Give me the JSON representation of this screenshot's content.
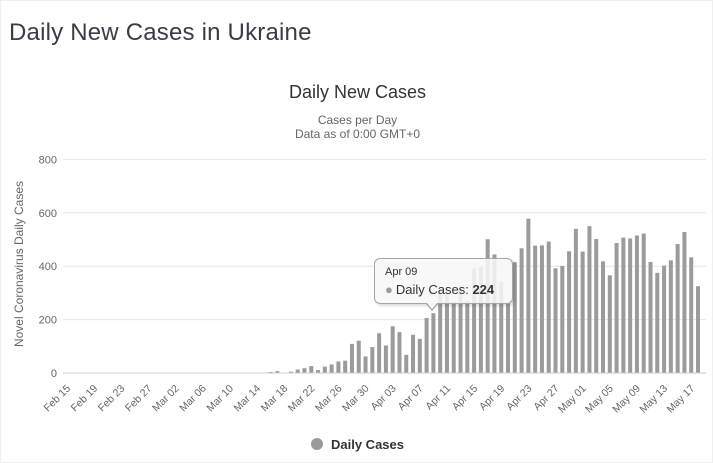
{
  "page": {
    "title": "Daily New Cases in Ukraine"
  },
  "chart": {
    "title": "Daily New Cases",
    "subtitle_line1": "Cases per Day",
    "subtitle_line2": "Data as of 0:00 GMT+0",
    "y_axis_title": "Novel Coronavirus Daily Cases",
    "legend_label": "Daily Cases"
  },
  "tooltip": {
    "date": "Apr 09",
    "series_label": "Daily Cases:",
    "value": "224",
    "bullet": "●",
    "anchor_index": 54
  },
  "colors": {
    "bar": "#9b9b9b",
    "grid": "#e6e6e6",
    "axis_line": "#cccccc",
    "tick_text": "#666666",
    "title_text": "#333333"
  },
  "chart_data": {
    "type": "bar",
    "title": "Daily New Cases",
    "subtitle": [
      "Cases per Day",
      "Data as of 0:00 GMT+0"
    ],
    "xlabel": "",
    "ylabel": "Novel Coronavirus Daily Cases",
    "ylim": [
      0,
      800
    ],
    "yticks": [
      0,
      200,
      400,
      600,
      800
    ],
    "grid": "horizontal",
    "legend_entries": [
      "Daily Cases"
    ],
    "legend_position": "bottom",
    "x_tick_every": 4,
    "x_tick_labels": [
      "Feb 15",
      "Feb 19",
      "Feb 23",
      "Feb 27",
      "Mar 02",
      "Mar 06",
      "Mar 10",
      "Mar 14",
      "Mar 18",
      "Mar 22",
      "Mar 26",
      "Mar 30",
      "Apr 03",
      "Apr 07",
      "Apr 11",
      "Apr 15",
      "Apr 19",
      "Apr 23",
      "Apr 27",
      "May 01",
      "May 05",
      "May 09",
      "May 13",
      "May 17"
    ],
    "categories": [
      "Feb 15",
      "Feb 16",
      "Feb 17",
      "Feb 18",
      "Feb 19",
      "Feb 20",
      "Feb 21",
      "Feb 22",
      "Feb 23",
      "Feb 24",
      "Feb 25",
      "Feb 26",
      "Feb 27",
      "Feb 28",
      "Feb 29",
      "Mar 01",
      "Mar 02",
      "Mar 03",
      "Mar 04",
      "Mar 05",
      "Mar 06",
      "Mar 07",
      "Mar 08",
      "Mar 09",
      "Mar 10",
      "Mar 11",
      "Mar 12",
      "Mar 13",
      "Mar 14",
      "Mar 15",
      "Mar 16",
      "Mar 17",
      "Mar 18",
      "Mar 19",
      "Mar 20",
      "Mar 21",
      "Mar 22",
      "Mar 23",
      "Mar 24",
      "Mar 25",
      "Mar 26",
      "Mar 27",
      "Mar 28",
      "Mar 29",
      "Mar 30",
      "Mar 31",
      "Apr 01",
      "Apr 02",
      "Apr 03",
      "Apr 04",
      "Apr 05",
      "Apr 06",
      "Apr 07",
      "Apr 08",
      "Apr 09",
      "Apr 10",
      "Apr 11",
      "Apr 12",
      "Apr 13",
      "Apr 14",
      "Apr 15",
      "Apr 16",
      "Apr 17",
      "Apr 18",
      "Apr 19",
      "Apr 20",
      "Apr 21",
      "Apr 22",
      "Apr 23",
      "Apr 24",
      "Apr 25",
      "Apr 26",
      "Apr 27",
      "Apr 28",
      "Apr 29",
      "Apr 30",
      "May 01",
      "May 02",
      "May 03",
      "May 04",
      "May 05",
      "May 06",
      "May 07",
      "May 08",
      "May 09",
      "May 10",
      "May 11",
      "May 12",
      "May 13",
      "May 14",
      "May 15",
      "May 16",
      "May 17",
      "May 18"
    ],
    "series": [
      {
        "name": "Daily Cases",
        "values": [
          0,
          0,
          0,
          0,
          0,
          0,
          0,
          0,
          0,
          0,
          0,
          0,
          0,
          0,
          0,
          0,
          0,
          1,
          0,
          0,
          0,
          0,
          0,
          0,
          0,
          0,
          2,
          0,
          1,
          0,
          4,
          7,
          2,
          5,
          13,
          18,
          26,
          11,
          24,
          32,
          43,
          46,
          109,
          121,
          62,
          97,
          149,
          103,
          175,
          153,
          68,
          143,
          128,
          206,
          224,
          311,
          308,
          266,
          325,
          270,
          392,
          397,
          501,
          444,
          343,
          261,
          415,
          467,
          578,
          477,
          478,
          492,
          392,
          401,
          456,
          540,
          455,
          550,
          502,
          418,
          366,
          487,
          507,
          504,
          515,
          522,
          416,
          375,
          402,
          422,
          483,
          528,
          433,
          325
        ]
      }
    ]
  }
}
